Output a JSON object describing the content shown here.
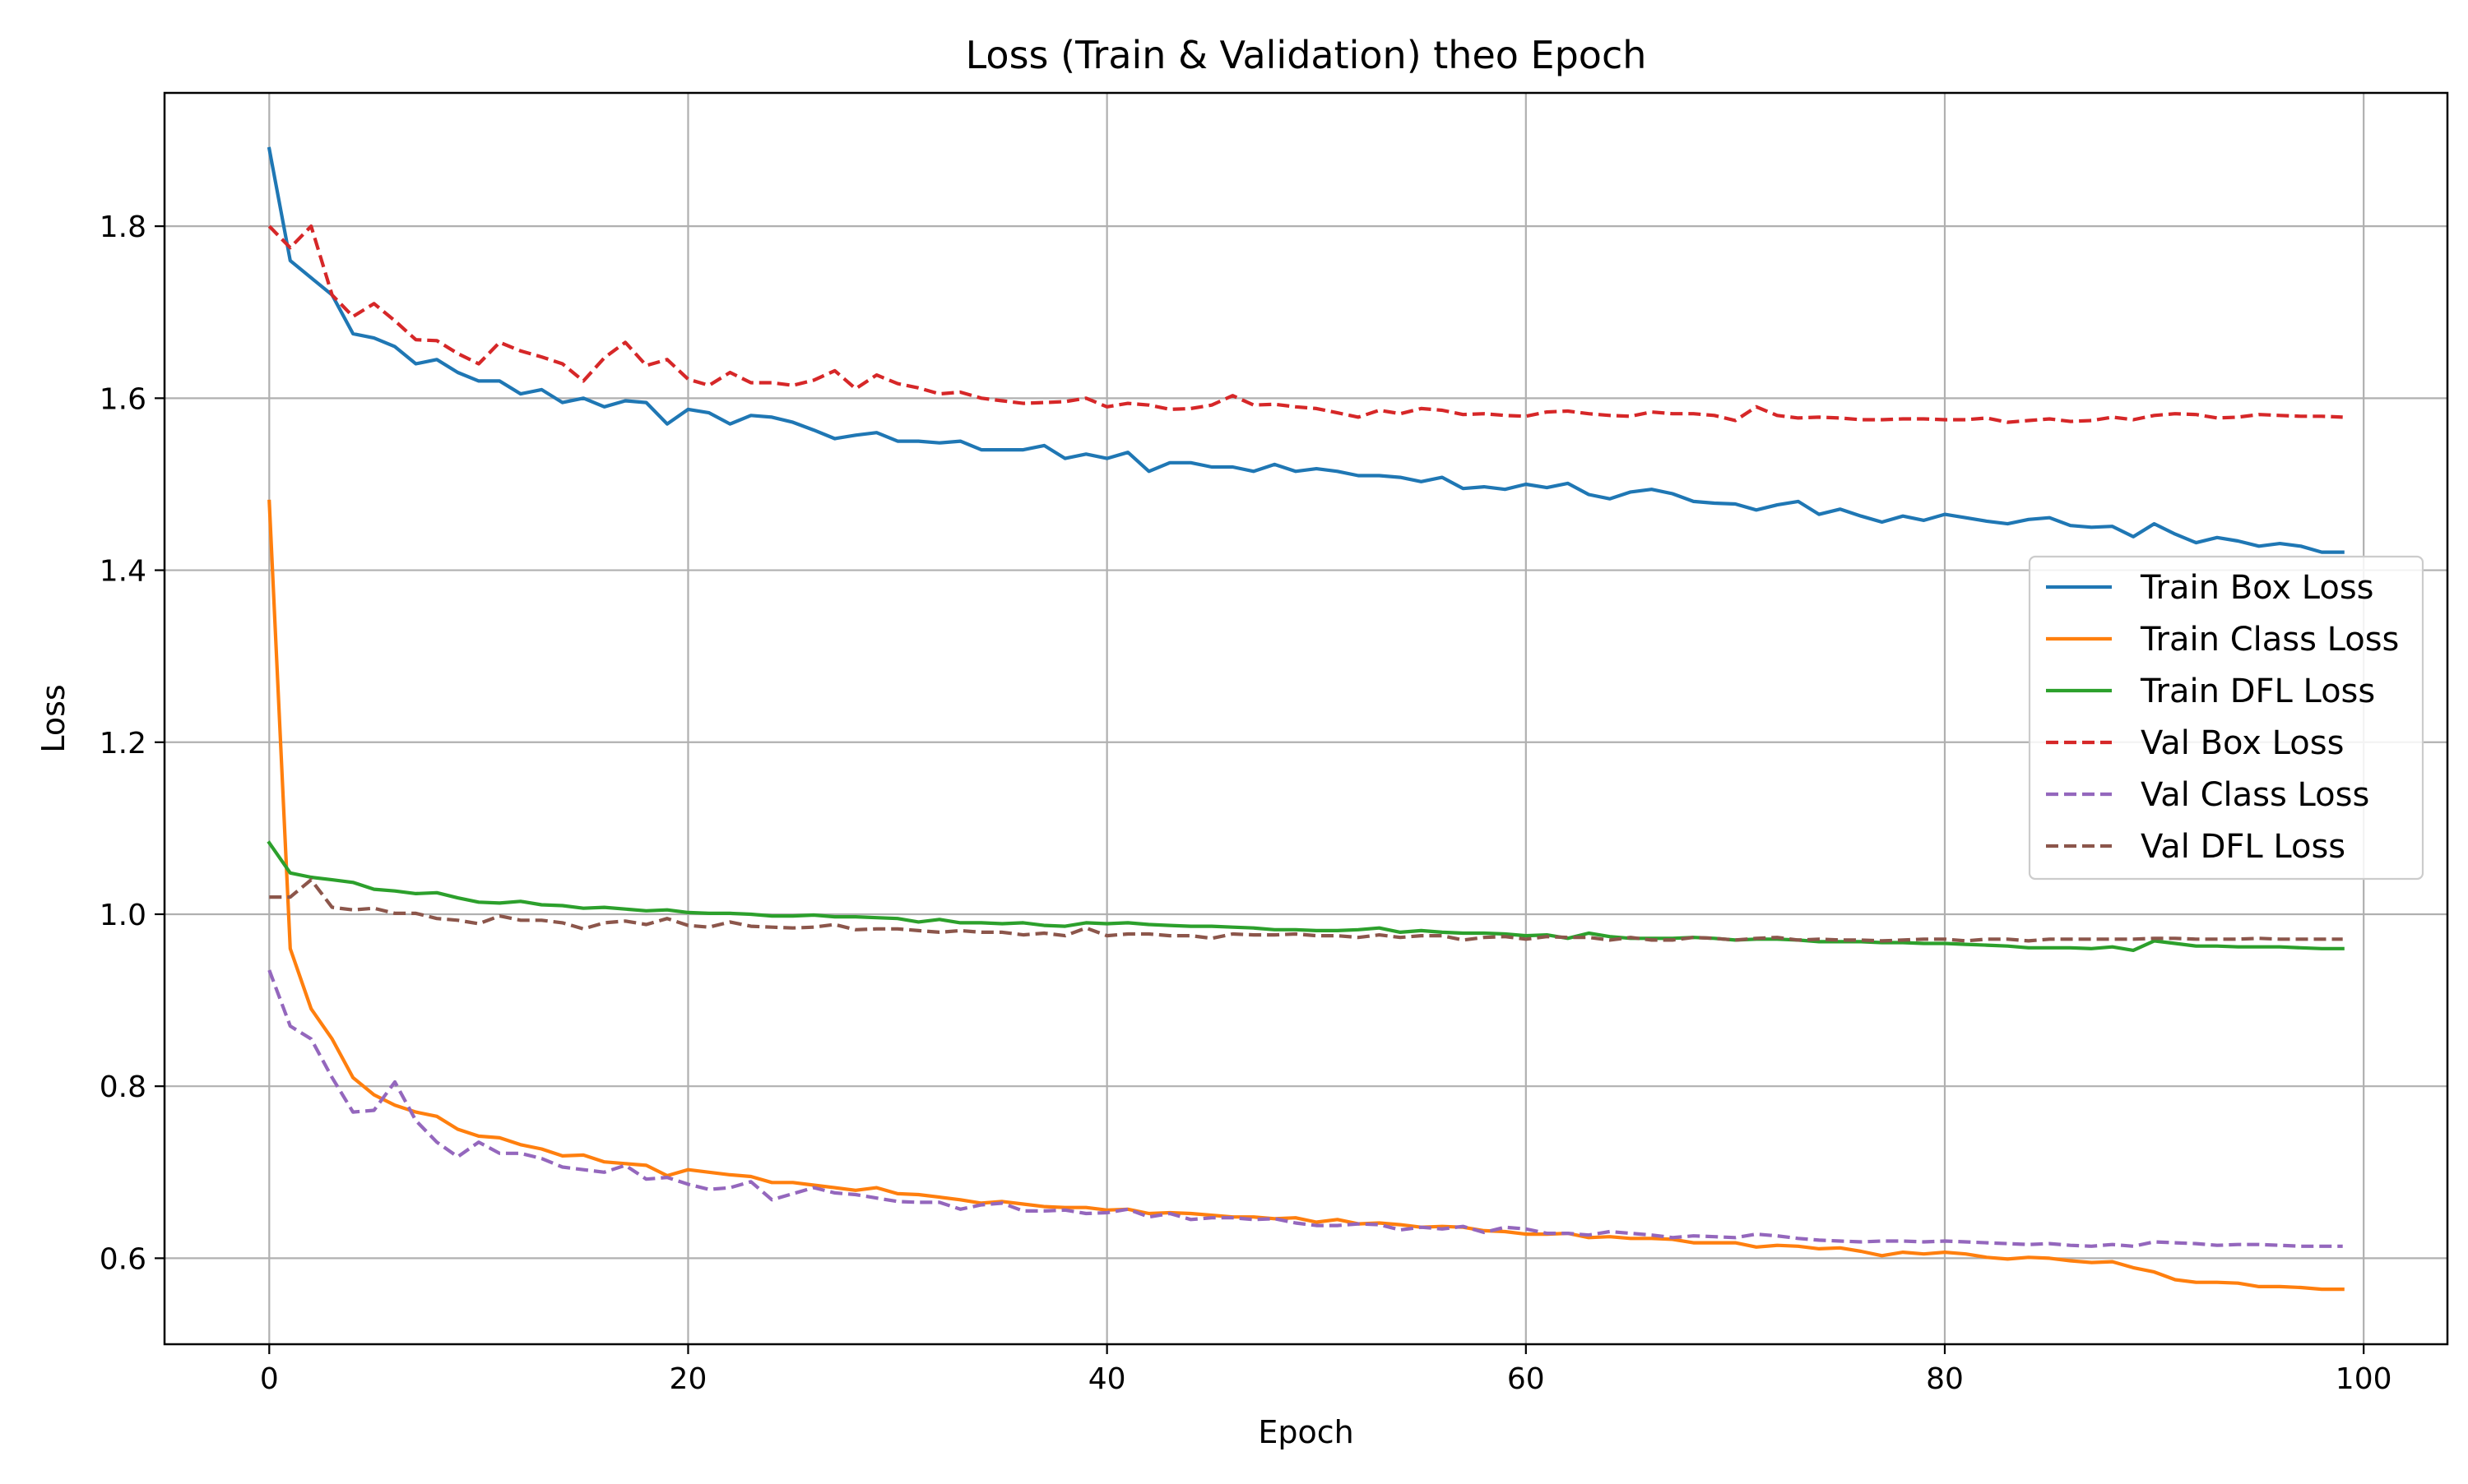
{
  "chart_data": {
    "type": "line",
    "title": "Loss (Train & Validation) theo Epoch",
    "xlabel": "Epoch",
    "ylabel": "Loss",
    "xlim": [
      -5,
      104
    ],
    "ylim": [
      0.5,
      1.955
    ],
    "xticks": [
      0,
      20,
      40,
      60,
      80,
      100
    ],
    "yticks": [
      0.6,
      0.8,
      1.0,
      1.2,
      1.4,
      1.6,
      1.8
    ],
    "xtick_labels": [
      "0",
      "20",
      "40",
      "60",
      "80",
      "100"
    ],
    "ytick_labels": [
      "0.6",
      "0.8",
      "1.0",
      "1.2",
      "1.4",
      "1.6",
      "1.8"
    ],
    "grid": true,
    "legend_position": "center-right",
    "x": [
      0,
      1,
      2,
      3,
      4,
      5,
      6,
      7,
      8,
      9,
      10,
      11,
      12,
      13,
      14,
      15,
      16,
      17,
      18,
      19,
      20,
      21,
      22,
      23,
      24,
      25,
      26,
      27,
      28,
      29,
      30,
      31,
      32,
      33,
      34,
      35,
      36,
      37,
      38,
      39,
      40,
      41,
      42,
      43,
      44,
      45,
      46,
      47,
      48,
      49,
      50,
      51,
      52,
      53,
      54,
      55,
      56,
      57,
      58,
      59,
      60,
      61,
      62,
      63,
      64,
      65,
      66,
      67,
      68,
      69,
      70,
      71,
      72,
      73,
      74,
      75,
      76,
      77,
      78,
      79,
      80,
      81,
      82,
      83,
      84,
      85,
      86,
      87,
      88,
      89,
      90,
      91,
      92,
      93,
      94,
      95,
      96,
      97,
      98,
      99
    ],
    "series": [
      {
        "name": "Train Box Loss",
        "color": "#1f77b4",
        "style": "solid",
        "values": [
          1.89,
          1.76,
          1.74,
          1.72,
          1.675,
          1.67,
          1.66,
          1.64,
          1.645,
          1.63,
          1.62,
          1.62,
          1.605,
          1.61,
          1.595,
          1.6,
          1.59,
          1.597,
          1.595,
          1.57,
          1.587,
          1.583,
          1.57,
          1.58,
          1.578,
          1.572,
          1.563,
          1.553,
          1.557,
          1.56,
          1.55,
          1.55,
          1.548,
          1.55,
          1.54,
          1.54,
          1.54,
          1.545,
          1.53,
          1.535,
          1.53,
          1.537,
          1.515,
          1.525,
          1.525,
          1.52,
          1.52,
          1.515,
          1.523,
          1.515,
          1.518,
          1.515,
          1.51,
          1.51,
          1.508,
          1.503,
          1.508,
          1.495,
          1.497,
          1.494,
          1.5,
          1.496,
          1.501,
          1.488,
          1.483,
          1.491,
          1.494,
          1.489,
          1.48,
          1.478,
          1.477,
          1.47,
          1.476,
          1.48,
          1.465,
          1.471,
          1.463,
          1.456,
          1.463,
          1.458,
          1.465,
          1.461,
          1.457,
          1.454,
          1.459,
          1.461,
          1.452,
          1.45,
          1.451,
          1.439,
          1.454,
          1.442,
          1.432,
          1.438,
          1.434,
          1.428,
          1.431,
          1.428,
          1.421,
          1.421
        ]
      },
      {
        "name": "Train Class Loss",
        "color": "#ff7f0e",
        "style": "solid",
        "values": [
          1.48,
          0.96,
          0.89,
          0.855,
          0.81,
          0.79,
          0.778,
          0.77,
          0.765,
          0.75,
          0.742,
          0.74,
          0.732,
          0.727,
          0.719,
          0.72,
          0.712,
          0.71,
          0.708,
          0.696,
          0.703,
          0.7,
          0.697,
          0.695,
          0.688,
          0.688,
          0.685,
          0.682,
          0.679,
          0.682,
          0.675,
          0.674,
          0.671,
          0.668,
          0.664,
          0.666,
          0.663,
          0.66,
          0.659,
          0.659,
          0.656,
          0.657,
          0.652,
          0.653,
          0.652,
          0.65,
          0.648,
          0.648,
          0.646,
          0.647,
          0.642,
          0.645,
          0.64,
          0.641,
          0.639,
          0.636,
          0.637,
          0.636,
          0.632,
          0.631,
          0.628,
          0.628,
          0.629,
          0.624,
          0.625,
          0.623,
          0.623,
          0.622,
          0.618,
          0.618,
          0.618,
          0.613,
          0.615,
          0.614,
          0.611,
          0.612,
          0.608,
          0.603,
          0.607,
          0.605,
          0.607,
          0.605,
          0.601,
          0.599,
          0.601,
          0.6,
          0.597,
          0.595,
          0.596,
          0.589,
          0.584,
          0.575,
          0.572,
          0.572,
          0.571,
          0.567,
          0.567,
          0.566,
          0.564,
          0.564
        ]
      },
      {
        "name": "Train DFL Loss",
        "color": "#2ca02c",
        "style": "solid",
        "values": [
          1.083,
          1.048,
          1.043,
          1.04,
          1.037,
          1.029,
          1.027,
          1.024,
          1.025,
          1.019,
          1.014,
          1.013,
          1.015,
          1.011,
          1.01,
          1.007,
          1.008,
          1.006,
          1.004,
          1.005,
          1.002,
          1.001,
          1.001,
          1.0,
          0.998,
          0.998,
          0.999,
          0.997,
          0.997,
          0.996,
          0.995,
          0.991,
          0.994,
          0.99,
          0.99,
          0.989,
          0.99,
          0.987,
          0.986,
          0.99,
          0.989,
          0.99,
          0.988,
          0.987,
          0.986,
          0.986,
          0.985,
          0.984,
          0.982,
          0.982,
          0.981,
          0.981,
          0.982,
          0.984,
          0.979,
          0.981,
          0.979,
          0.978,
          0.978,
          0.977,
          0.975,
          0.976,
          0.972,
          0.978,
          0.974,
          0.972,
          0.972,
          0.972,
          0.973,
          0.972,
          0.97,
          0.971,
          0.971,
          0.97,
          0.968,
          0.968,
          0.968,
          0.967,
          0.967,
          0.966,
          0.966,
          0.965,
          0.964,
          0.963,
          0.961,
          0.961,
          0.961,
          0.96,
          0.962,
          0.958,
          0.969,
          0.966,
          0.963,
          0.963,
          0.962,
          0.962,
          0.962,
          0.961,
          0.96,
          0.96
        ]
      },
      {
        "name": "Val Box Loss",
        "color": "#d62728",
        "style": "dashed",
        "values": [
          1.8,
          1.775,
          1.8,
          1.72,
          1.695,
          1.71,
          1.69,
          1.668,
          1.667,
          1.652,
          1.64,
          1.665,
          1.655,
          1.648,
          1.64,
          1.62,
          1.647,
          1.665,
          1.638,
          1.645,
          1.622,
          1.615,
          1.63,
          1.618,
          1.618,
          1.615,
          1.621,
          1.632,
          1.611,
          1.627,
          1.617,
          1.612,
          1.605,
          1.607,
          1.6,
          1.597,
          1.594,
          1.595,
          1.596,
          1.6,
          1.59,
          1.594,
          1.592,
          1.587,
          1.588,
          1.592,
          1.603,
          1.592,
          1.593,
          1.59,
          1.588,
          1.583,
          1.578,
          1.586,
          1.582,
          1.588,
          1.586,
          1.581,
          1.582,
          1.58,
          1.579,
          1.584,
          1.585,
          1.582,
          1.58,
          1.579,
          1.584,
          1.582,
          1.582,
          1.58,
          1.574,
          1.59,
          1.58,
          1.577,
          1.578,
          1.577,
          1.575,
          1.575,
          1.576,
          1.576,
          1.575,
          1.575,
          1.577,
          1.572,
          1.574,
          1.576,
          1.573,
          1.574,
          1.578,
          1.575,
          1.58,
          1.582,
          1.581,
          1.577,
          1.578,
          1.581,
          1.58,
          1.579,
          1.579,
          1.578
        ]
      },
      {
        "name": "Val Class Loss",
        "color": "#9467bd",
        "style": "dashed",
        "values": [
          0.935,
          0.87,
          0.855,
          0.81,
          0.77,
          0.772,
          0.805,
          0.76,
          0.735,
          0.718,
          0.735,
          0.722,
          0.722,
          0.716,
          0.706,
          0.703,
          0.7,
          0.708,
          0.692,
          0.694,
          0.686,
          0.68,
          0.682,
          0.689,
          0.668,
          0.675,
          0.682,
          0.676,
          0.674,
          0.67,
          0.666,
          0.665,
          0.665,
          0.657,
          0.662,
          0.664,
          0.655,
          0.655,
          0.656,
          0.652,
          0.653,
          0.657,
          0.648,
          0.652,
          0.645,
          0.647,
          0.647,
          0.645,
          0.646,
          0.641,
          0.638,
          0.638,
          0.64,
          0.639,
          0.633,
          0.636,
          0.634,
          0.637,
          0.63,
          0.636,
          0.634,
          0.629,
          0.629,
          0.627,
          0.631,
          0.629,
          0.627,
          0.624,
          0.626,
          0.625,
          0.624,
          0.628,
          0.626,
          0.623,
          0.621,
          0.62,
          0.619,
          0.62,
          0.62,
          0.619,
          0.62,
          0.619,
          0.618,
          0.617,
          0.616,
          0.617,
          0.615,
          0.614,
          0.616,
          0.614,
          0.619,
          0.618,
          0.617,
          0.615,
          0.616,
          0.616,
          0.615,
          0.614,
          0.614,
          0.614
        ]
      },
      {
        "name": "Val DFL Loss",
        "color": "#8c564b",
        "style": "dashed",
        "values": [
          1.02,
          1.02,
          1.04,
          1.008,
          1.005,
          1.007,
          1.001,
          1.001,
          0.995,
          0.993,
          0.989,
          0.998,
          0.993,
          0.993,
          0.99,
          0.983,
          0.99,
          0.992,
          0.988,
          0.995,
          0.987,
          0.985,
          0.991,
          0.986,
          0.985,
          0.984,
          0.985,
          0.988,
          0.982,
          0.983,
          0.983,
          0.981,
          0.979,
          0.981,
          0.979,
          0.979,
          0.976,
          0.978,
          0.975,
          0.984,
          0.975,
          0.977,
          0.977,
          0.975,
          0.975,
          0.972,
          0.977,
          0.976,
          0.976,
          0.977,
          0.975,
          0.975,
          0.973,
          0.976,
          0.973,
          0.975,
          0.975,
          0.97,
          0.973,
          0.974,
          0.971,
          0.974,
          0.973,
          0.973,
          0.97,
          0.973,
          0.97,
          0.97,
          0.973,
          0.972,
          0.97,
          0.972,
          0.973,
          0.97,
          0.971,
          0.97,
          0.97,
          0.969,
          0.97,
          0.971,
          0.971,
          0.969,
          0.971,
          0.971,
          0.969,
          0.971,
          0.971,
          0.971,
          0.971,
          0.971,
          0.972,
          0.972,
          0.971,
          0.971,
          0.971,
          0.972,
          0.971,
          0.971,
          0.971,
          0.971
        ]
      }
    ]
  }
}
